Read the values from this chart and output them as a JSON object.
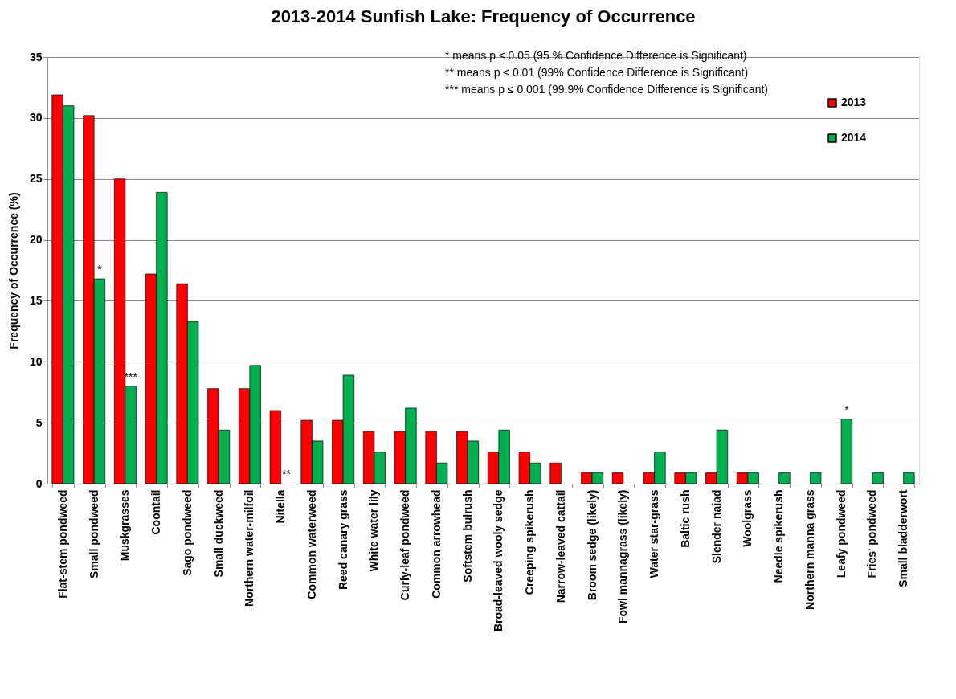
{
  "chart_data": {
    "type": "bar",
    "title": "2013-2014 Sunfish Lake: Frequency of Occurrence",
    "ylabel": "Frequency of Occurrence (%)",
    "categories": [
      "Flat-stem pondweed",
      "Small pondweed",
      "Muskgrasses",
      "Coontail",
      "Sago pondweed",
      "Small duckweed",
      "Northern water-milfoil",
      "Nitella",
      "Common waterweed",
      "Reed canary grass",
      "White water lily",
      "Curly-leaf pondweed",
      "Common arrowhead",
      "Softstem bulrush",
      "Broad-leaved wooly sedge",
      "Creeping spikerush",
      "Narrow-leaved cattail",
      "Broom sedge (likely)",
      "Fowl mannagrass (likely)",
      "Water star-grass",
      "Baltic rush",
      "Slender naiad",
      "Woolgrass",
      "Needle spikerush",
      "Northern manna grass",
      "Leafy pondweed",
      "Fries' pondweed",
      "Small bladderwort"
    ],
    "series": [
      {
        "name": "2013",
        "color": "#ff0000",
        "values": [
          31.9,
          30.2,
          25.0,
          17.2,
          16.4,
          7.8,
          7.8,
          6.0,
          5.2,
          5.2,
          4.3,
          4.3,
          4.3,
          4.3,
          2.6,
          2.6,
          1.7,
          0.9,
          0.9,
          0.9,
          0.9,
          0.9,
          0.9,
          null,
          null,
          null,
          null,
          null
        ]
      },
      {
        "name": "2014",
        "color": "#00b050",
        "values": [
          31.0,
          16.8,
          8.0,
          23.9,
          13.3,
          4.4,
          9.7,
          null,
          3.5,
          8.9,
          2.6,
          6.2,
          1.7,
          3.5,
          4.4,
          1.7,
          null,
          0.9,
          null,
          2.6,
          0.9,
          4.4,
          0.9,
          0.9,
          0.9,
          5.3,
          0.9,
          0.9
        ]
      }
    ],
    "ylim": [
      0,
      35
    ],
    "yticks": [
      0,
      5,
      10,
      15,
      20,
      25,
      30,
      35
    ],
    "grid": "y",
    "legend": "top right",
    "annotations": [
      "*    means p ≤ 0.05    (95 % Confidence Difference is Significant)",
      "**  means p ≤ 0.01      (99% Confidence Difference is Significant)",
      "*** means p ≤ 0.001  (99.9% Confidence Difference is Significant)",
      {
        "text": "*",
        "x": "Small pondweed",
        "y": 16.8
      },
      {
        "text": "***",
        "x": "Muskgrasses",
        "y": 8.0
      },
      {
        "text": "**",
        "x": "Nitella",
        "y": 0
      },
      {
        "text": "*",
        "x": "Leafy pondweed",
        "y": 5.3
      }
    ]
  }
}
